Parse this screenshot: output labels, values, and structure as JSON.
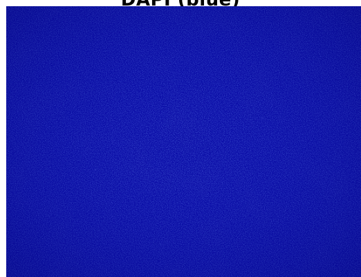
{
  "figure": {
    "title": "DAPI (blue)",
    "image_description_icon": "fluorescence-microscopy-image",
    "colors": {
      "base": "#0a0fa8",
      "dark": "#030683",
      "bright": "#1f2df0",
      "speckle": "#3a48ff"
    }
  }
}
